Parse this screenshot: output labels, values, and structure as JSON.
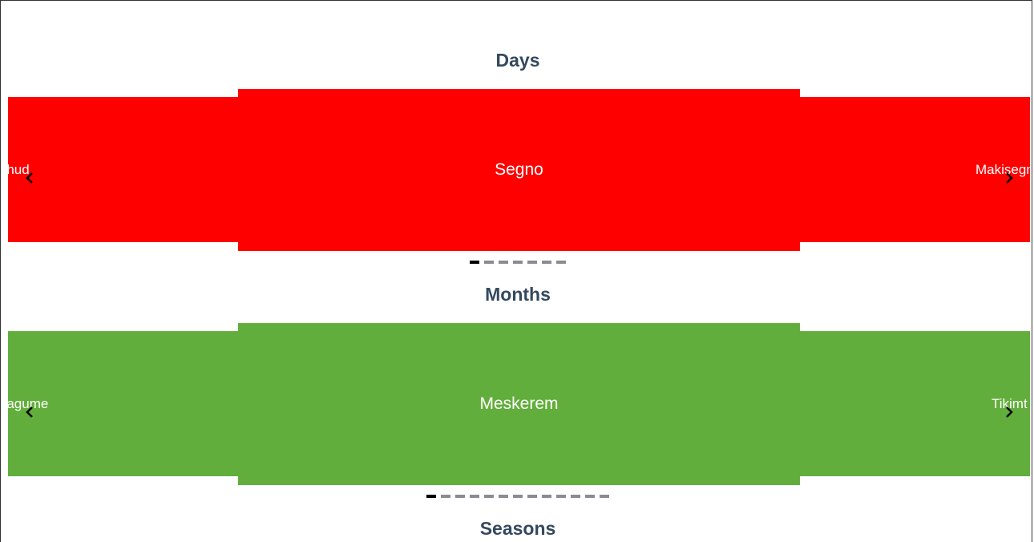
{
  "sections": [
    {
      "title": "Days",
      "prev_label": "Ehud",
      "current_label": "Segno",
      "next_label": "Makisegno",
      "color": "#ff0000",
      "dot_count": 7,
      "active_dot": 0
    },
    {
      "title": "Months",
      "prev_label": "Pagume",
      "current_label": "Meskerem",
      "next_label": "Tikimt",
      "color": "#62ae3c",
      "dot_count": 13,
      "active_dot": 0
    },
    {
      "title": "Seasons"
    }
  ],
  "icons": {
    "prev": "chevron-left-icon",
    "next": "chevron-right-icon"
  }
}
